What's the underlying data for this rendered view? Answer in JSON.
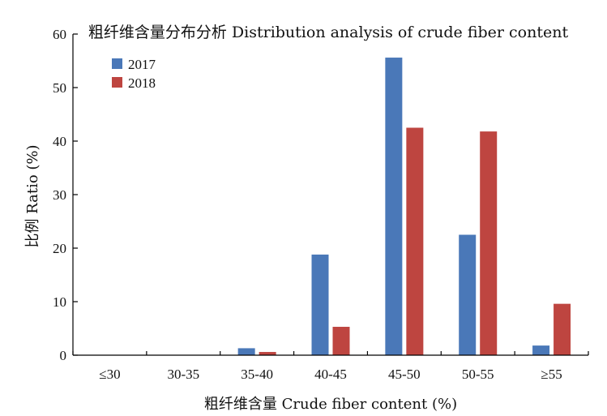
{
  "chart_data": {
    "type": "bar",
    "title": "粗纤维含量分布分析 Distribution analysis of crude fiber content",
    "xlabel": "粗纤维含量 Crude fiber content (%)",
    "ylabel": "比例 Ratio (%)",
    "categories": [
      "≤30",
      "30-35",
      "35-40",
      "40-45",
      "45-50",
      "50-55",
      "≥55"
    ],
    "series": [
      {
        "name": "2017",
        "color": "#4a78b8",
        "values": [
          0,
          0,
          1.3,
          18.8,
          55.6,
          22.5,
          1.8
        ]
      },
      {
        "name": "2018",
        "color": "#be4540",
        "values": [
          0,
          0,
          0.6,
          5.3,
          42.5,
          41.8,
          9.6
        ]
      }
    ],
    "ylim": [
      0,
      60
    ],
    "yticks": [
      "0",
      "10",
      "20",
      "30",
      "40",
      "50",
      "60"
    ],
    "grid": false,
    "legend_position": "top-left"
  }
}
